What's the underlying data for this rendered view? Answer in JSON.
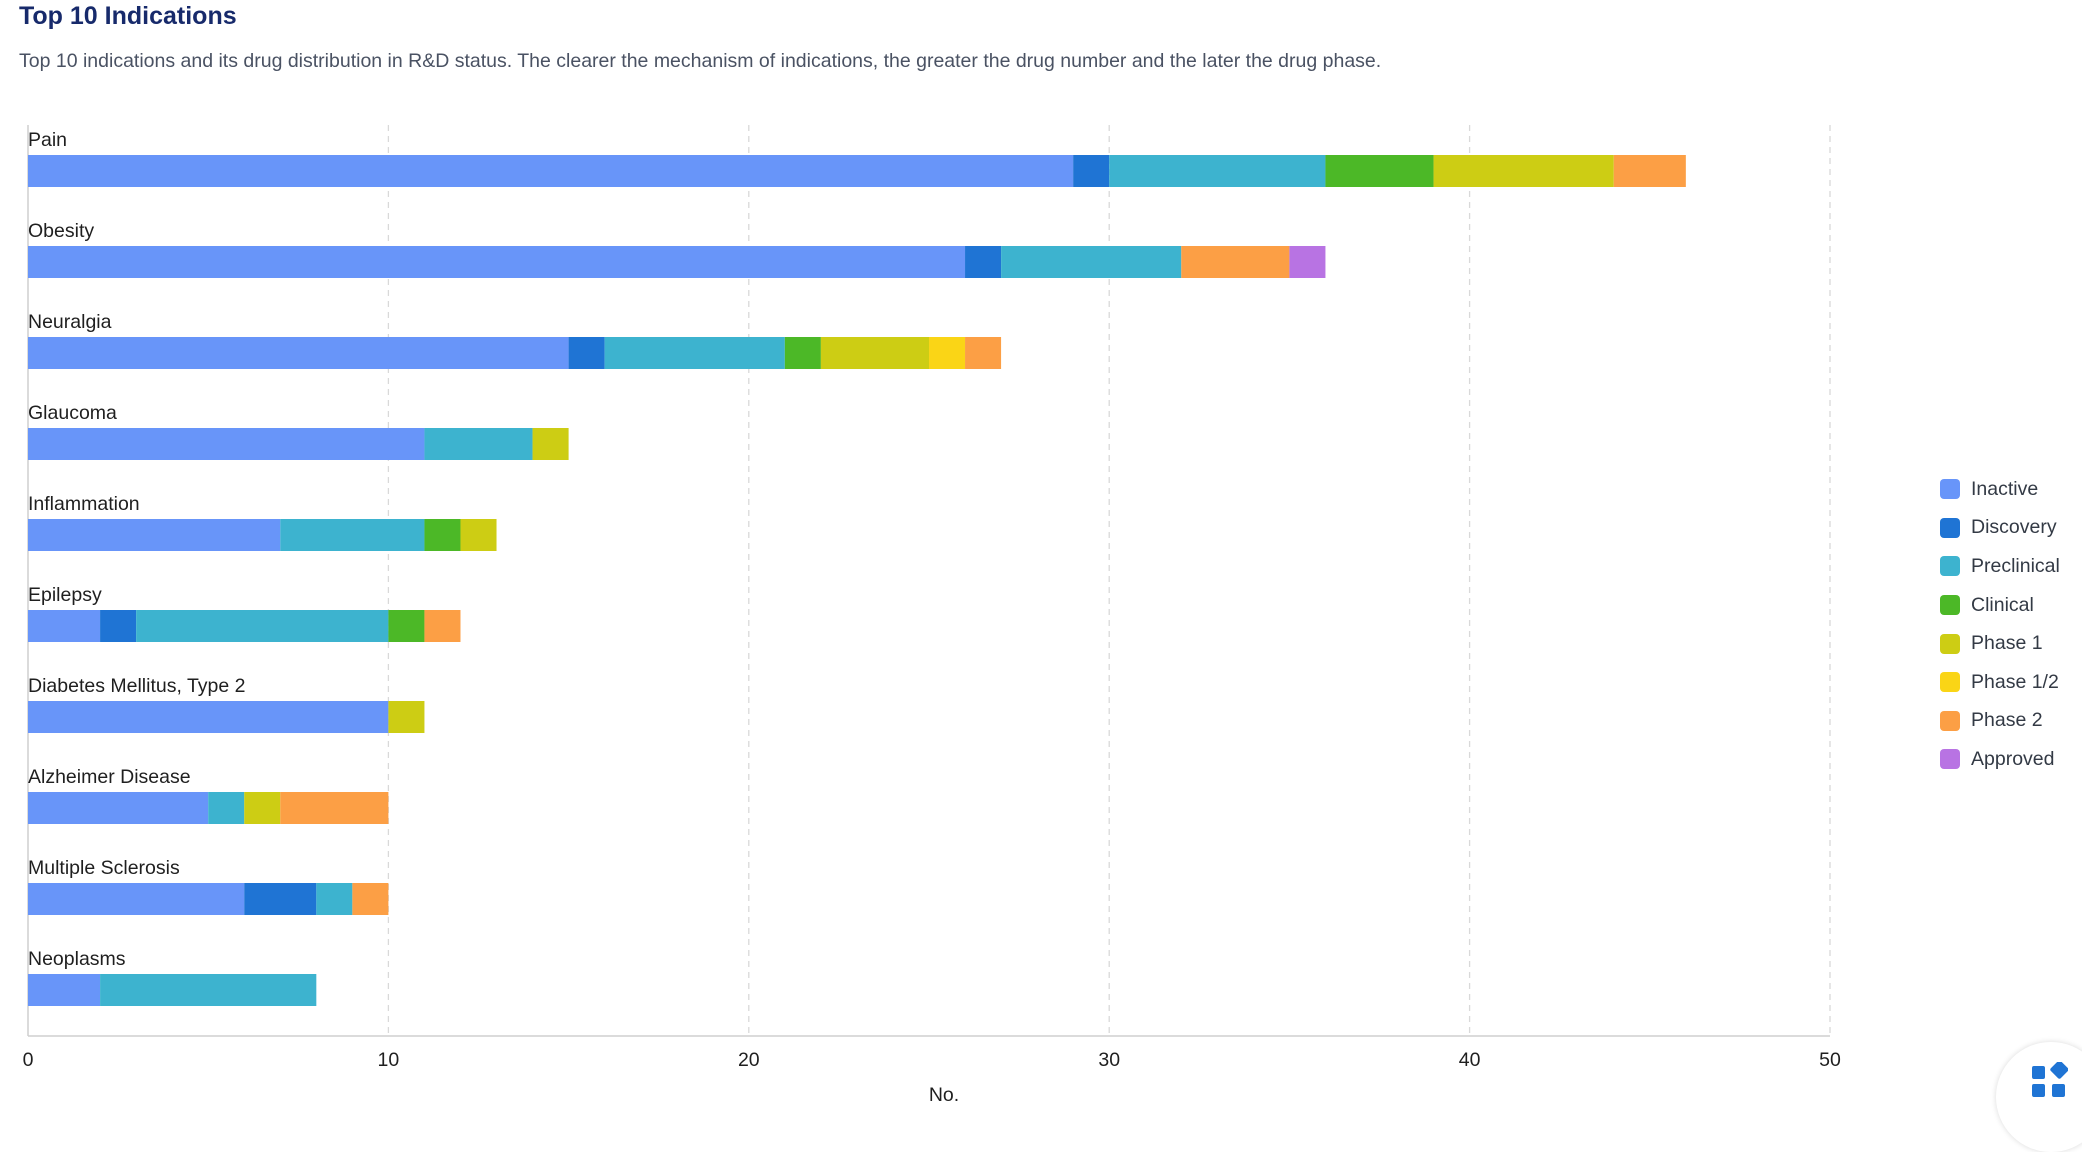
{
  "header": {
    "title": "Top 10 Indications",
    "subtitle": "Top 10 indications and its drug distribution in R&D status. The clearer the mechanism of indications, the greater the drug number and the later the drug phase."
  },
  "chart_data": {
    "type": "bar",
    "orientation": "horizontal",
    "stacked": true,
    "categories": [
      "Pain",
      "Obesity",
      "Neuralgia",
      "Glaucoma",
      "Inflammation",
      "Epilepsy",
      "Diabetes Mellitus, Type 2",
      "Alzheimer Disease",
      "Multiple Sclerosis",
      "Neoplasms"
    ],
    "series": [
      {
        "name": "Inactive",
        "color": "#6895f9",
        "values": [
          29,
          26,
          15,
          11,
          7,
          2,
          10,
          5,
          6,
          2
        ]
      },
      {
        "name": "Discovery",
        "color": "#1f74d4",
        "values": [
          1,
          1,
          1,
          0,
          0,
          1,
          0,
          0,
          2,
          0
        ]
      },
      {
        "name": "Preclinical",
        "color": "#3db3cf",
        "values": [
          6,
          5,
          5,
          3,
          4,
          7,
          0,
          1,
          1,
          6
        ]
      },
      {
        "name": "Clinical",
        "color": "#4cb827",
        "values": [
          3,
          0,
          1,
          0,
          1,
          1,
          0,
          0,
          0,
          0
        ]
      },
      {
        "name": "Phase 1",
        "color": "#cdcd14",
        "values": [
          5,
          0,
          3,
          1,
          1,
          0,
          1,
          1,
          0,
          0
        ]
      },
      {
        "name": "Phase 1/2",
        "color": "#fad516",
        "values": [
          0,
          0,
          1,
          0,
          0,
          0,
          0,
          0,
          0,
          0
        ]
      },
      {
        "name": "Phase 2",
        "color": "#fc9f45",
        "values": [
          2,
          3,
          1,
          0,
          0,
          1,
          0,
          3,
          1,
          0
        ]
      },
      {
        "name": "Approved",
        "color": "#b873e3",
        "values": [
          0,
          1,
          0,
          0,
          0,
          0,
          0,
          0,
          0,
          0
        ]
      }
    ],
    "xlim": [
      0,
      50
    ],
    "xticks": [
      "0",
      "10",
      "20",
      "30",
      "40",
      "50"
    ],
    "xlabel": "No.",
    "grid": "vertical dashed",
    "legend_position": "right"
  }
}
